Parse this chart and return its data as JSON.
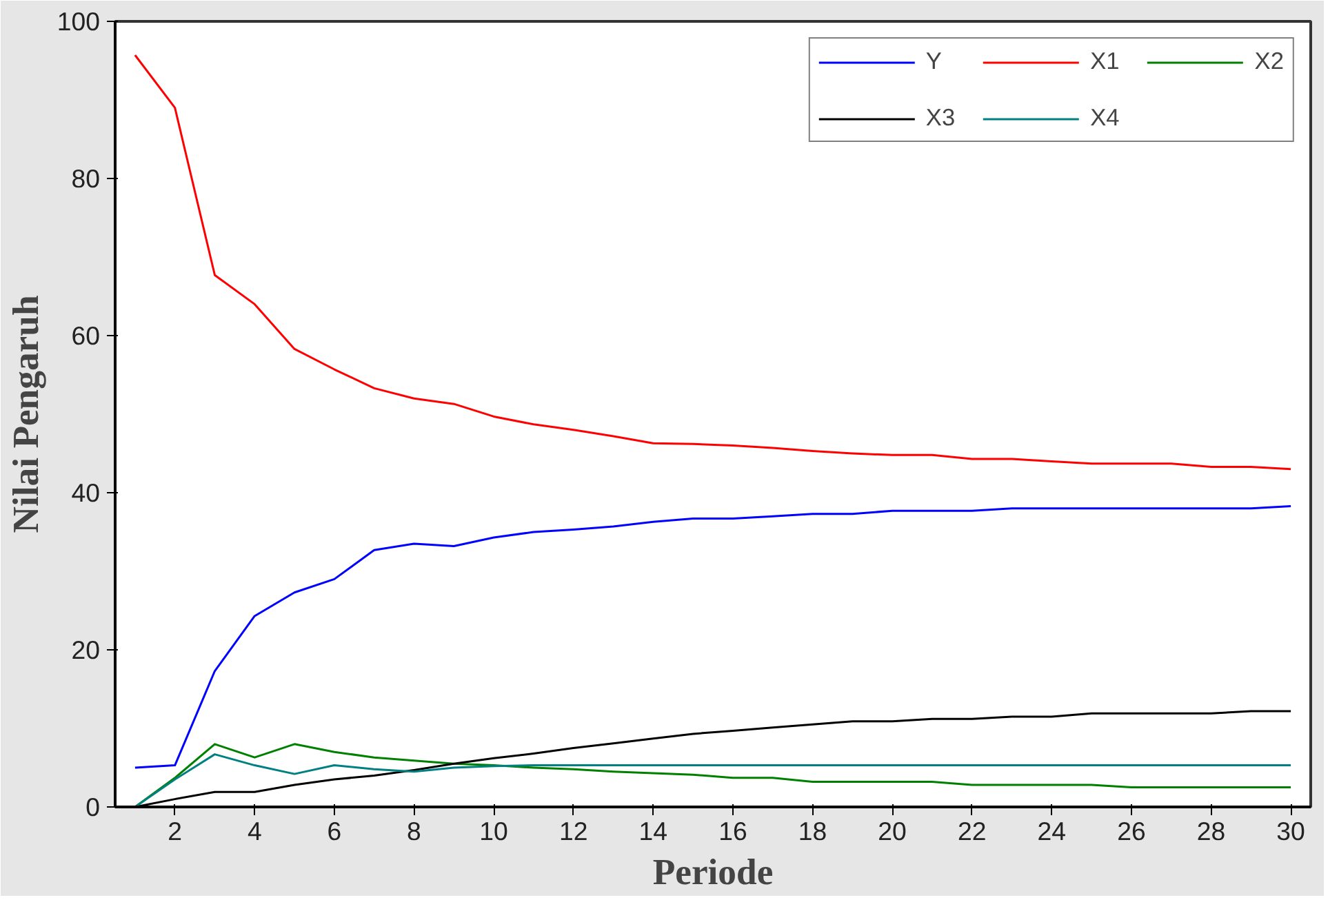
{
  "chart_data": {
    "type": "line",
    "xlabel": "Periode",
    "ylabel": "Nilai Pengaruh",
    "x": [
      1,
      2,
      3,
      4,
      5,
      6,
      7,
      8,
      9,
      10,
      11,
      12,
      13,
      14,
      15,
      16,
      17,
      18,
      19,
      20,
      21,
      22,
      23,
      24,
      25,
      26,
      27,
      28,
      29,
      30
    ],
    "series": [
      {
        "name": "Y",
        "color": "#0000ff",
        "values": [
          5,
          5.3,
          17.3,
          24.3,
          27.3,
          29,
          32.7,
          33.5,
          33.2,
          34.3,
          35,
          35.3,
          35.7,
          36.3,
          36.7,
          36.7,
          37,
          37.3,
          37.3,
          37.7,
          37.7,
          37.7,
          38,
          38,
          38,
          38,
          38,
          38,
          38,
          38.3
        ]
      },
      {
        "name": "X1",
        "color": "#ff0000",
        "values": [
          95.7,
          89,
          67.7,
          64,
          58.3,
          55.7,
          53.3,
          52,
          51.3,
          49.7,
          48.7,
          48,
          47.2,
          46.3,
          46.2,
          46,
          45.7,
          45.3,
          45,
          44.8,
          44.8,
          44.3,
          44.3,
          44,
          43.7,
          43.7,
          43.7,
          43.3,
          43.3,
          43
        ]
      },
      {
        "name": "X2",
        "color": "#008000",
        "values": [
          0,
          3.7,
          8,
          6.3,
          8,
          7,
          6.3,
          5.9,
          5.5,
          5.3,
          5,
          4.8,
          4.5,
          4.3,
          4.1,
          3.7,
          3.7,
          3.2,
          3.2,
          3.2,
          3.2,
          2.8,
          2.8,
          2.8,
          2.8,
          2.5,
          2.5,
          2.5,
          2.5,
          2.5
        ]
      },
      {
        "name": "X3",
        "color": "#000000",
        "values": [
          0,
          1,
          1.9,
          1.9,
          2.8,
          3.5,
          4,
          4.7,
          5.5,
          6.2,
          6.8,
          7.5,
          8.1,
          8.7,
          9.3,
          9.7,
          10.1,
          10.5,
          10.9,
          10.9,
          11.2,
          11.2,
          11.5,
          11.5,
          11.9,
          11.9,
          11.9,
          11.9,
          12.2,
          12.2
        ]
      },
      {
        "name": "X4",
        "color": "#008080",
        "values": [
          0,
          3.5,
          6.7,
          5.3,
          4.2,
          5.3,
          4.8,
          4.5,
          5,
          5.2,
          5.3,
          5.3,
          5.3,
          5.3,
          5.3,
          5.3,
          5.3,
          5.3,
          5.3,
          5.3,
          5.3,
          5.3,
          5.3,
          5.3,
          5.3,
          5.3,
          5.3,
          5.3,
          5.3,
          5.3
        ]
      }
    ],
    "xlim": [
      0.5,
      30.5
    ],
    "xticks": [
      2,
      4,
      6,
      8,
      10,
      12,
      14,
      16,
      18,
      20,
      22,
      24,
      26,
      28,
      30
    ],
    "ylim": [
      0,
      100
    ],
    "yticks": [
      0,
      20,
      40,
      60,
      80,
      100
    ],
    "grid": false,
    "legend": "top right",
    "marker": "none",
    "line_style": "solid"
  }
}
